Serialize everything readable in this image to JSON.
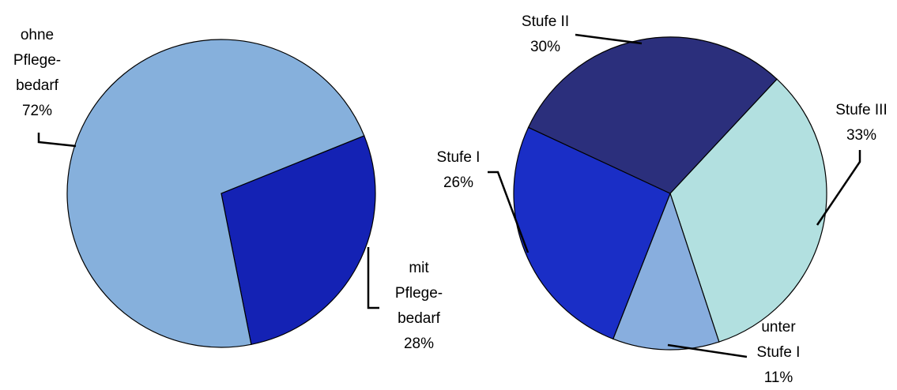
{
  "chart_data": [
    {
      "type": "pie",
      "categories": [
        [
          "mit",
          "Pflege-",
          "bedarf"
        ],
        [
          "ohne",
          "Pflege-",
          "bedarf"
        ]
      ],
      "values": [
        28,
        72
      ],
      "value_labels": [
        "28%",
        "72%"
      ],
      "colors": [
        "#1422b4",
        "#86b0dc"
      ]
    },
    {
      "type": "pie",
      "categories": [
        [
          "Stufe III"
        ],
        [
          "unter",
          "Stufe I"
        ],
        [
          "Stufe I"
        ],
        [
          "Stufe II"
        ]
      ],
      "values": [
        33,
        11,
        26,
        30
      ],
      "value_labels": [
        "33%",
        "11%",
        "26%",
        "30%"
      ],
      "colors": [
        "#b2e0e0",
        "#88aede",
        "#1a2ec6",
        "#2b2f7c"
      ]
    }
  ]
}
